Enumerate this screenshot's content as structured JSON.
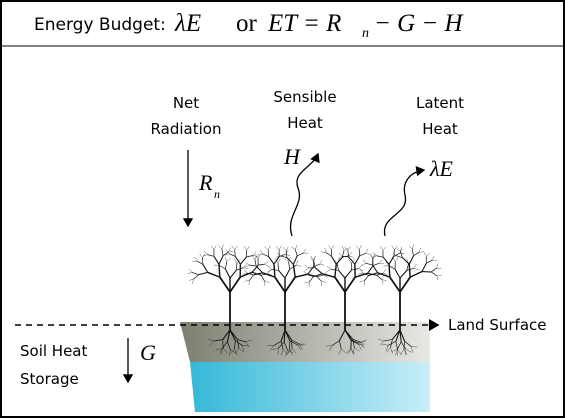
{
  "header": {
    "label": "Energy Budget:",
    "equation": {
      "lhs": "λE",
      "conjunction": "or",
      "rhs_start": "ET = R",
      "subscript": "n",
      "rhs_end": "− G − H"
    }
  },
  "labels": {
    "net_radiation": {
      "lines": [
        "Net",
        "Radiation"
      ],
      "symbol": "R",
      "subscript": "n"
    },
    "sensible_heat": {
      "lines": [
        "Sensible",
        "Heat"
      ],
      "symbol": "H"
    },
    "latent_heat": {
      "lines": [
        "Latent",
        "Heat"
      ],
      "symbol": "λE"
    },
    "land_surface": "Land Surface",
    "soil_heat_storage": {
      "lines": [
        "Soil Heat",
        "Storage"
      ],
      "symbol": "G"
    }
  }
}
